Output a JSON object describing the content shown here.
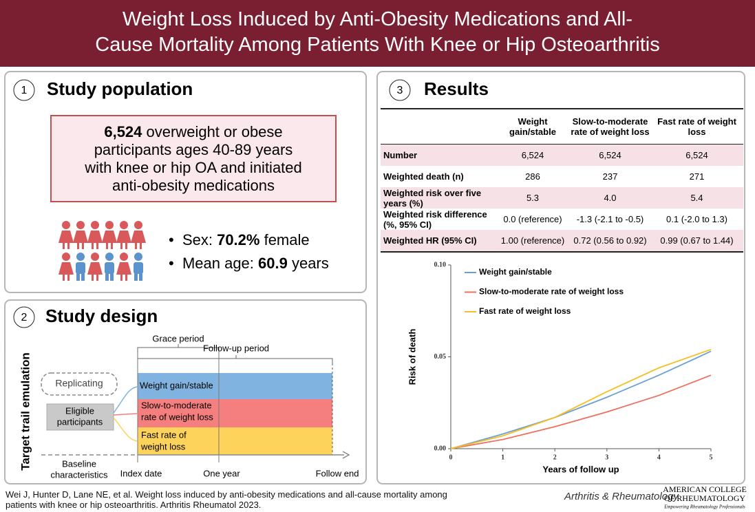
{
  "header": {
    "title_lines": [
      "Weight Loss Induced by Anti-Obesity Medications and All-",
      "Cause Mortality Among Patients With Knee or Hip Osteoarthritis"
    ]
  },
  "population": {
    "number": "1",
    "heading": "Study population",
    "box": {
      "count": "6,524",
      "first_line_rest": "overweight or obese",
      "lines": [
        "participants ages 40-89 years",
        "with knee or hip OA and initiated",
        "anti-obesity medications"
      ]
    },
    "bullets": [
      {
        "label": "Sex: ",
        "value": "70.2%",
        "rest": " female"
      },
      {
        "label": "Mean age: ",
        "value": "60.9",
        "rest": " years"
      }
    ]
  },
  "design": {
    "number": "2",
    "heading": "Study design",
    "side_label": "Target trail emulation",
    "grace": "Grace period",
    "follow_up": "Follow-up period",
    "replicating": "Replicating",
    "eligible": [
      "Eligible",
      "participants"
    ],
    "groups": [
      [
        "Weight gain/stable"
      ],
      [
        "Slow-to-moderate",
        "rate of weight loss"
      ],
      [
        "Fast rate of",
        "weight loss"
      ]
    ],
    "baseline": [
      "Baseline",
      "characteristics"
    ],
    "index_date": "Index date",
    "one_year": "One year",
    "follow_end": "Follow end"
  },
  "results": {
    "number": "3",
    "heading": "Results",
    "table": {
      "columns": [
        "Weight gain/stable",
        "Slow-to-moderate rate of weight loss",
        "Fast rate of weight loss"
      ],
      "rows": [
        [
          "Number",
          "6,524",
          "6,524",
          "6,524"
        ],
        [
          "Weighted death (n)",
          "286",
          "237",
          "271"
        ],
        [
          "Weighted risk over five years (%)",
          "5.3",
          "4.0",
          "5.4"
        ],
        [
          "Weighted risk difference (%,  95% CI)",
          "0.0 (reference)",
          "-1.3 (-2.1 to -0.5)",
          "0.1 (-2.0 to 1.3)"
        ],
        [
          "Weighted HR (95% CI)",
          "1.00 (reference)",
          "0.72 (0.56 to 0.92)",
          "0.99 (0.67 to 1.44)"
        ]
      ]
    }
  },
  "chart_data": {
    "type": "line",
    "xlabel": "Years of follow up",
    "ylabel": "Risk of death",
    "x": [
      0,
      1,
      2,
      3,
      4,
      5
    ],
    "xlim": [
      0,
      5
    ],
    "xticks": [
      0,
      1,
      2,
      3,
      4,
      5
    ],
    "ylim": [
      0,
      0.1
    ],
    "yticks": [
      {
        "value": 0,
        "label": "0.00"
      },
      {
        "value": 0.05,
        "label": "0.05"
      },
      {
        "value": 0.1,
        "label": "0.10"
      }
    ],
    "legend": "upper left",
    "series": [
      {
        "name": "Weight gain/stable",
        "color": "#6b9fd3",
        "values": [
          0,
          0.008,
          0.017,
          0.028,
          0.04,
          0.053
        ]
      },
      {
        "name": "Slow-to-moderate rate of weight loss",
        "color": "#ef6f5e",
        "values": [
          0,
          0.005,
          0.012,
          0.02,
          0.029,
          0.04
        ]
      },
      {
        "name": "Fast rate of weight loss",
        "color": "#f4bf22",
        "values": [
          0,
          0.007,
          0.017,
          0.031,
          0.044,
          0.054
        ]
      }
    ]
  },
  "footer": {
    "citation_lines": [
      "Wei J, Hunter D, Lane NE, et al. Weight loss induced by anti-obesity medications and all-cause mortality among",
      "patients with knee or hip osteoarthritis. Arthritis Rheumatol 2023."
    ],
    "journal": "Arthritis & Rheumatology",
    "acr_lines": [
      "American College",
      "of Rheumatology"
    ],
    "acr_tagline": "Empowering Rheumatology Professionals"
  }
}
